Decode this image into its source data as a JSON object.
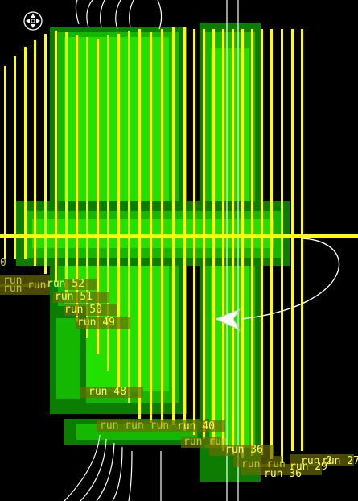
{
  "canvas": {
    "background": "#000000",
    "colors": {
      "route": "#ffff00",
      "fill_bright": "#22e000",
      "fill_mid": "#15b800",
      "fill_dark": "#0b7d00",
      "curve": "#ffffff",
      "label": "#ffff4d"
    }
  },
  "tools": {
    "pan_icon": "four-way-pan-icon",
    "pointer_icon": "arrow-cursor-icon"
  },
  "labels": {
    "run_52": "run 52",
    "run_51": "run 51",
    "run_50": "run 50",
    "run_49": "run 49",
    "run_48": "run 48",
    "run_40": "run 40",
    "run_36": "run 36",
    "run_29": "run 29",
    "run_27": "run 27",
    "run_2": "run 2",
    "run_3": "run 3",
    "run_36b": "run 36"
  }
}
